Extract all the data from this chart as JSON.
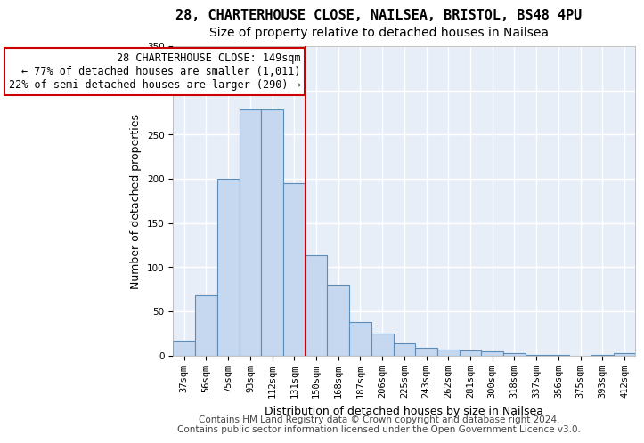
{
  "title1": "28, CHARTERHOUSE CLOSE, NAILSEA, BRISTOL, BS48 4PU",
  "title2": "Size of property relative to detached houses in Nailsea",
  "xlabel": "Distribution of detached houses by size in Nailsea",
  "ylabel": "Number of detached properties",
  "footer1": "Contains HM Land Registry data © Crown copyright and database right 2024.",
  "footer2": "Contains public sector information licensed under the Open Government Licence v3.0.",
  "categories": [
    "37sqm",
    "56sqm",
    "75sqm",
    "93sqm",
    "112sqm",
    "131sqm",
    "150sqm",
    "168sqm",
    "187sqm",
    "206sqm",
    "225sqm",
    "243sqm",
    "262sqm",
    "281sqm",
    "300sqm",
    "318sqm",
    "337sqm",
    "356sqm",
    "375sqm",
    "393sqm",
    "412sqm"
  ],
  "values": [
    17,
    68,
    200,
    278,
    278,
    195,
    113,
    80,
    38,
    25,
    14,
    9,
    7,
    6,
    5,
    3,
    1,
    1,
    0,
    1,
    3
  ],
  "bar_color": "#c5d8f0",
  "bar_edge_color": "#5b8db8",
  "annotation_text": "28 CHARTERHOUSE CLOSE: 149sqm\n← 77% of detached houses are smaller (1,011)\n22% of semi-detached houses are larger (290) →",
  "vline_x": 5.5,
  "vline_color": "#cc0000",
  "annotation_box_color": "#ffffff",
  "annotation_box_edge": "#cc0000",
  "ylim": [
    0,
    350
  ],
  "yticks": [
    0,
    50,
    100,
    150,
    200,
    250,
    300,
    350
  ],
  "background_color": "#e8eef8",
  "grid_color": "#ffffff",
  "title1_fontsize": 11,
  "title2_fontsize": 10,
  "axis_label_fontsize": 9,
  "tick_fontsize": 7.5,
  "annotation_fontsize": 8.5,
  "footer_fontsize": 7.5
}
